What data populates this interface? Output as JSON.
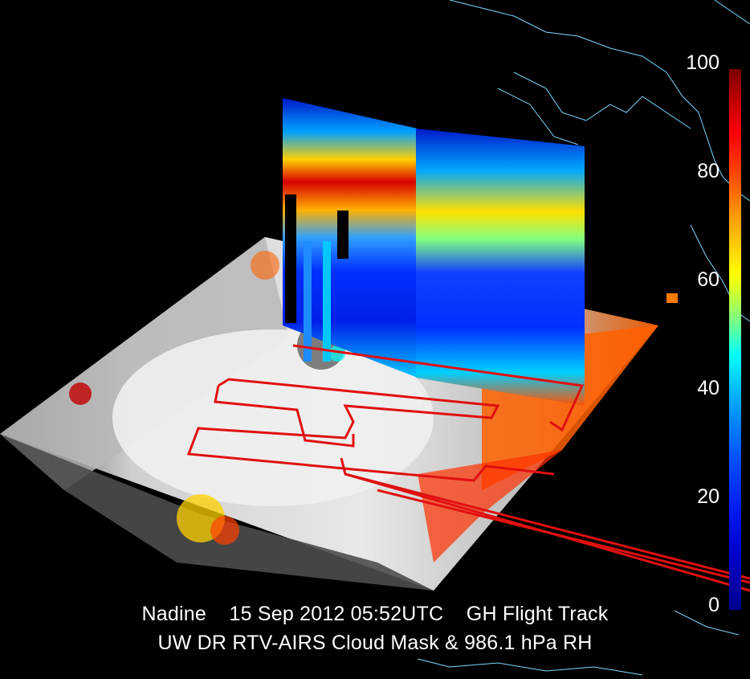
{
  "caption": {
    "line1": "Nadine    15 Sep 2012 05:52UTC    GH Flight Track",
    "line2": "UW DR RTV-AIRS Cloud Mask & 986.1 hPa RH"
  },
  "colorbar": {
    "labels": [
      "100",
      "80",
      "60",
      "40",
      "20",
      "0"
    ],
    "min": 0,
    "max": 100
  },
  "colors": {
    "background": "#000000",
    "coastline": "#7fd8ff",
    "flight_track": "#e01010",
    "cloud_mask": "#e6e6e6"
  }
}
